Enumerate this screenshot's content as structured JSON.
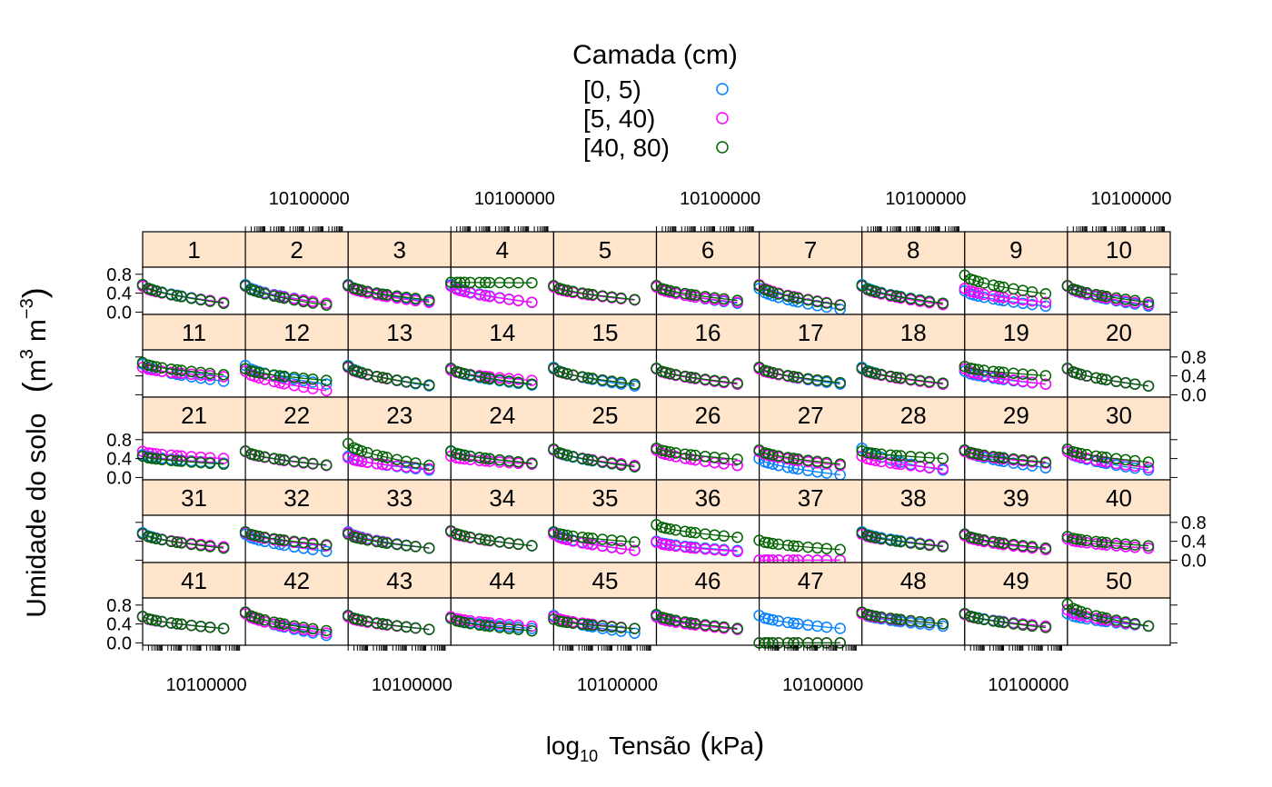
{
  "chart_data": {
    "type": "scatter",
    "legend": {
      "title": "Camada (cm)",
      "placement": "top",
      "entries": [
        {
          "label": "[0, 5)",
          "color": "#0080ff"
        },
        {
          "label": "[5, 40)",
          "color": "#ff00ff"
        },
        {
          "label": "[40, 80)",
          "color": "#006400"
        }
      ]
    },
    "ylabel": {
      "main": "Umidade do solo",
      "unit_base": "m",
      "unit_exp1": "3",
      "unit_mid": "m",
      "unit_exp2": "−3"
    },
    "xlabel": {
      "prefix": "log",
      "subscript": "10",
      "main": "Tensão",
      "unit": "kPa"
    },
    "x_tick_label": "10100000",
    "y_ticks": [
      "0.0",
      "0.4",
      "0.8"
    ],
    "ylim": [
      -0.05,
      0.95
    ],
    "x_scale": "log10",
    "xlim_log10": [
      -1.0,
      4.3
    ],
    "strip_color": "#ffe5cc",
    "panels": [
      {
        "label": "1",
        "s": [
          [
            0.58,
            0.2
          ],
          [
            0.55,
            0.2
          ],
          [
            0.58,
            0.18
          ]
        ]
      },
      {
        "label": "2",
        "s": [
          [
            0.58,
            0.18
          ],
          [
            0.55,
            0.18
          ],
          [
            0.56,
            0.14
          ]
        ]
      },
      {
        "label": "3",
        "s": [
          [
            0.58,
            0.22
          ],
          [
            0.55,
            0.2
          ],
          [
            0.57,
            0.25
          ]
        ]
      },
      {
        "label": "4",
        "s": [
          [
            0.58,
            0.2
          ],
          [
            0.55,
            0.2
          ],
          [
            0.63,
            0.62
          ]
        ]
      },
      {
        "label": "5",
        "s": [
          [
            0.55,
            0.25
          ],
          [
            0.53,
            0.25
          ],
          [
            0.56,
            0.26
          ]
        ]
      },
      {
        "label": "6",
        "s": [
          [
            0.55,
            0.18
          ],
          [
            0.53,
            0.2
          ],
          [
            0.56,
            0.24
          ]
        ]
      },
      {
        "label": "7",
        "s": [
          [
            0.5,
            0.05
          ],
          [
            0.58,
            0.15
          ],
          [
            0.56,
            0.14
          ]
        ]
      },
      {
        "label": "8",
        "s": [
          [
            0.58,
            0.18
          ],
          [
            0.55,
            0.15
          ],
          [
            0.56,
            0.18
          ]
        ]
      },
      {
        "label": "9",
        "s": [
          [
            0.45,
            0.12
          ],
          [
            0.5,
            0.2
          ],
          [
            0.78,
            0.38
          ]
        ]
      },
      {
        "label": "10",
        "s": [
          [
            0.55,
            0.12
          ],
          [
            0.55,
            0.15
          ],
          [
            0.56,
            0.2
          ]
        ]
      },
      {
        "label": "11",
        "s": [
          [
            0.65,
            0.28
          ],
          [
            0.58,
            0.38
          ],
          [
            0.68,
            0.42
          ]
        ]
      },
      {
        "label": "12",
        "s": [
          [
            0.62,
            0.22
          ],
          [
            0.5,
            0.08
          ],
          [
            0.55,
            0.3
          ]
        ]
      },
      {
        "label": "13",
        "s": [
          [
            0.62,
            0.18
          ],
          [
            0.58,
            0.2
          ],
          [
            0.6,
            0.2
          ]
        ]
      },
      {
        "label": "14",
        "s": [
          [
            0.55,
            0.2
          ],
          [
            0.52,
            0.3
          ],
          [
            0.56,
            0.22
          ]
        ]
      },
      {
        "label": "15",
        "s": [
          [
            0.58,
            0.18
          ],
          [
            0.55,
            0.22
          ],
          [
            0.56,
            0.22
          ]
        ]
      },
      {
        "label": "16",
        "s": [
          [
            0.55,
            0.22
          ],
          [
            0.55,
            0.22
          ],
          [
            0.56,
            0.24
          ]
        ]
      },
      {
        "label": "17",
        "s": [
          [
            0.58,
            0.22
          ],
          [
            0.55,
            0.25
          ],
          [
            0.58,
            0.25
          ]
        ]
      },
      {
        "label": "18",
        "s": [
          [
            0.58,
            0.22
          ],
          [
            0.55,
            0.22
          ],
          [
            0.56,
            0.24
          ]
        ]
      },
      {
        "label": "19",
        "s": [
          [
            0.5,
            0.22
          ],
          [
            0.55,
            0.22
          ],
          [
            0.6,
            0.4
          ]
        ]
      },
      {
        "label": "20",
        "s": [
          [
            0.55,
            0.18
          ],
          [
            0.55,
            0.18
          ],
          [
            0.56,
            0.18
          ]
        ]
      },
      {
        "label": "21",
        "s": [
          [
            0.48,
            0.3
          ],
          [
            0.55,
            0.4
          ],
          [
            0.45,
            0.28
          ]
        ]
      },
      {
        "label": "22",
        "s": [
          [
            0.55,
            0.25
          ],
          [
            0.55,
            0.25
          ],
          [
            0.56,
            0.26
          ]
        ]
      },
      {
        "label": "23",
        "s": [
          [
            0.45,
            0.15
          ],
          [
            0.42,
            0.18
          ],
          [
            0.72,
            0.25
          ]
        ]
      },
      {
        "label": "24",
        "s": [
          [
            0.55,
            0.3
          ],
          [
            0.45,
            0.28
          ],
          [
            0.56,
            0.3
          ]
        ]
      },
      {
        "label": "25",
        "s": [
          [
            0.58,
            0.22
          ],
          [
            0.58,
            0.25
          ],
          [
            0.6,
            0.22
          ]
        ]
      },
      {
        "label": "26",
        "s": [
          [
            0.58,
            0.25
          ],
          [
            0.58,
            0.25
          ],
          [
            0.62,
            0.38
          ]
        ]
      },
      {
        "label": "27",
        "s": [
          [
            0.4,
            0.05
          ],
          [
            0.55,
            0.25
          ],
          [
            0.58,
            0.28
          ]
        ]
      },
      {
        "label": "28",
        "s": [
          [
            0.62,
            0.15
          ],
          [
            0.45,
            0.18
          ],
          [
            0.56,
            0.4
          ]
        ]
      },
      {
        "label": "29",
        "s": [
          [
            0.58,
            0.2
          ],
          [
            0.55,
            0.3
          ],
          [
            0.58,
            0.32
          ]
        ]
      },
      {
        "label": "30",
        "s": [
          [
            0.55,
            0.15
          ],
          [
            0.55,
            0.2
          ],
          [
            0.6,
            0.32
          ]
        ]
      },
      {
        "label": "31",
        "s": [
          [
            0.58,
            0.25
          ],
          [
            0.55,
            0.28
          ],
          [
            0.56,
            0.25
          ]
        ]
      },
      {
        "label": "32",
        "s": [
          [
            0.55,
            0.18
          ],
          [
            0.58,
            0.3
          ],
          [
            0.6,
            0.32
          ]
        ]
      },
      {
        "label": "33",
        "s": [
          [
            0.6,
            0.25
          ],
          [
            0.58,
            0.25
          ],
          [
            0.55,
            0.25
          ]
        ]
      },
      {
        "label": "34",
        "s": [
          [
            0.62,
            0.3
          ],
          [
            0.6,
            0.3
          ],
          [
            0.62,
            0.3
          ]
        ]
      },
      {
        "label": "35",
        "s": [
          [
            0.58,
            0.2
          ],
          [
            0.55,
            0.2
          ],
          [
            0.6,
            0.38
          ]
        ]
      },
      {
        "label": "36",
        "s": [
          [
            0.4,
            0.2
          ],
          [
            0.38,
            0.18
          ],
          [
            0.75,
            0.48
          ]
        ]
      },
      {
        "label": "37",
        "s": [
          [
            0.0,
            0.0
          ],
          [
            0.0,
            0.0
          ],
          [
            0.42,
            0.22
          ]
        ]
      },
      {
        "label": "38",
        "s": [
          [
            0.6,
            0.3
          ],
          [
            0.55,
            0.3
          ],
          [
            0.58,
            0.28
          ]
        ]
      },
      {
        "label": "39",
        "s": [
          [
            0.55,
            0.22
          ],
          [
            0.52,
            0.22
          ],
          [
            0.55,
            0.25
          ]
        ]
      },
      {
        "label": "40",
        "s": [
          [
            0.45,
            0.25
          ],
          [
            0.45,
            0.25
          ],
          [
            0.5,
            0.3
          ]
        ]
      },
      {
        "label": "41",
        "s": [
          [
            0.55,
            0.3
          ],
          [
            0.55,
            0.3
          ],
          [
            0.56,
            0.3
          ]
        ]
      },
      {
        "label": "42",
        "s": [
          [
            0.65,
            0.15
          ],
          [
            0.62,
            0.2
          ],
          [
            0.65,
            0.25
          ]
        ]
      },
      {
        "label": "43",
        "s": [
          [
            0.58,
            0.28
          ],
          [
            0.55,
            0.28
          ],
          [
            0.58,
            0.28
          ]
        ]
      },
      {
        "label": "44",
        "s": [
          [
            0.52,
            0.3
          ],
          [
            0.55,
            0.35
          ],
          [
            0.52,
            0.25
          ]
        ]
      },
      {
        "label": "45",
        "s": [
          [
            0.58,
            0.2
          ],
          [
            0.55,
            0.3
          ],
          [
            0.5,
            0.3
          ]
        ]
      },
      {
        "label": "46",
        "s": [
          [
            0.58,
            0.28
          ],
          [
            0.55,
            0.28
          ],
          [
            0.6,
            0.3
          ]
        ]
      },
      {
        "label": "47",
        "s": [
          [
            0.58,
            0.3
          ],
          [
            0.0,
            0.0
          ],
          [
            0.0,
            0.0
          ]
        ]
      },
      {
        "label": "48",
        "s": [
          [
            0.62,
            0.35
          ],
          [
            0.62,
            0.4
          ],
          [
            0.65,
            0.4
          ]
        ]
      },
      {
        "label": "49",
        "s": [
          [
            0.62,
            0.35
          ],
          [
            0.6,
            0.35
          ],
          [
            0.62,
            0.32
          ]
        ]
      },
      {
        "label": "50",
        "s": [
          [
            0.62,
            0.35
          ],
          [
            0.7,
            0.35
          ],
          [
            0.82,
            0.35
          ]
        ]
      }
    ]
  }
}
